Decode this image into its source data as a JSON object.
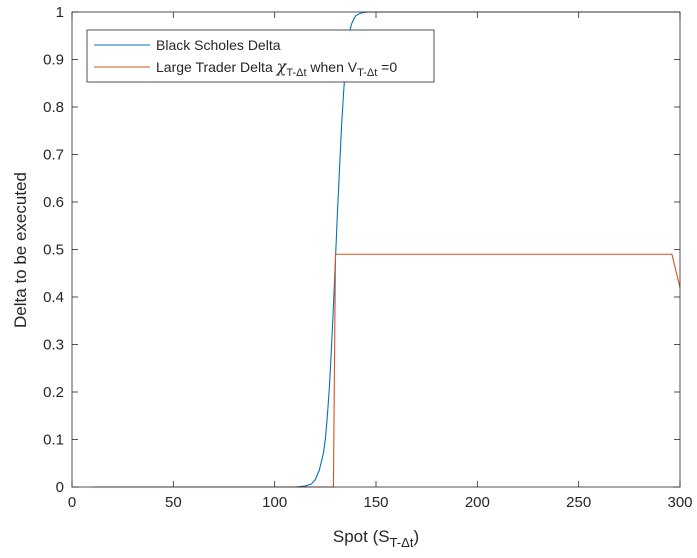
{
  "chart_data": {
    "type": "line",
    "xlabel": "Spot (S",
    "xlabel_sub": "T-Δt",
    "xlabel_close": ")",
    "ylabel": "Delta to be executed",
    "xlim": [
      0,
      300
    ],
    "ylim": [
      0,
      1
    ],
    "xticks": [
      0,
      50,
      100,
      150,
      200,
      250,
      300
    ],
    "yticks": [
      0,
      0.1,
      0.2,
      0.3,
      0.4,
      0.5,
      0.6,
      0.7,
      0.8,
      0.9,
      1
    ],
    "xtick_labels": [
      "0",
      "50",
      "100",
      "150",
      "200",
      "250",
      "300"
    ],
    "ytick_labels": [
      "0",
      "0.1",
      "0.2",
      "0.3",
      "0.4",
      "0.5",
      "0.6",
      "0.7",
      "0.8",
      "0.9",
      "1"
    ],
    "grid": false,
    "legend_position": "top-left",
    "series": [
      {
        "name": "Black Scholes Delta",
        "color": "#0072BD",
        "x": [
          10,
          110,
          115,
          118,
          120,
          122,
          124,
          125,
          126,
          127,
          128,
          129,
          130,
          131,
          132,
          133,
          134,
          135,
          136,
          137,
          138,
          139,
          140,
          142,
          144,
          146,
          150,
          300
        ],
        "y": [
          0,
          0,
          0.002,
          0.006,
          0.015,
          0.035,
          0.07,
          0.1,
          0.15,
          0.21,
          0.29,
          0.38,
          0.48,
          0.58,
          0.67,
          0.76,
          0.83,
          0.89,
          0.93,
          0.96,
          0.975,
          0.985,
          0.992,
          0.997,
          0.999,
          1,
          1,
          1
        ]
      },
      {
        "name": "Large Trader Delta",
        "name_parts": {
          "prefix": "Large Trader Delta ",
          "chi": "χ",
          "chi_sub": "T-Δt",
          "mid": " when V",
          "v_sub": "T-Δt",
          "suffix": " =0"
        },
        "color": "#D95319",
        "x": [
          10,
          129,
          129.5,
          130,
          296,
          300
        ],
        "y": [
          0,
          0,
          0.25,
          0.49,
          0.49,
          0.42
        ]
      }
    ]
  }
}
